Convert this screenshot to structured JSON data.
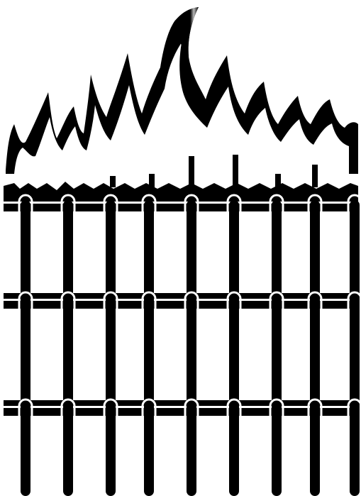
{
  "artwork": {
    "subject_icon": "flaming-fence-icon",
    "colors": {
      "ink": "#000000",
      "paper": "#ffffff",
      "highlight": "#b8b8b8"
    },
    "fence": {
      "post_count": 9,
      "rail_count": 3
    }
  }
}
